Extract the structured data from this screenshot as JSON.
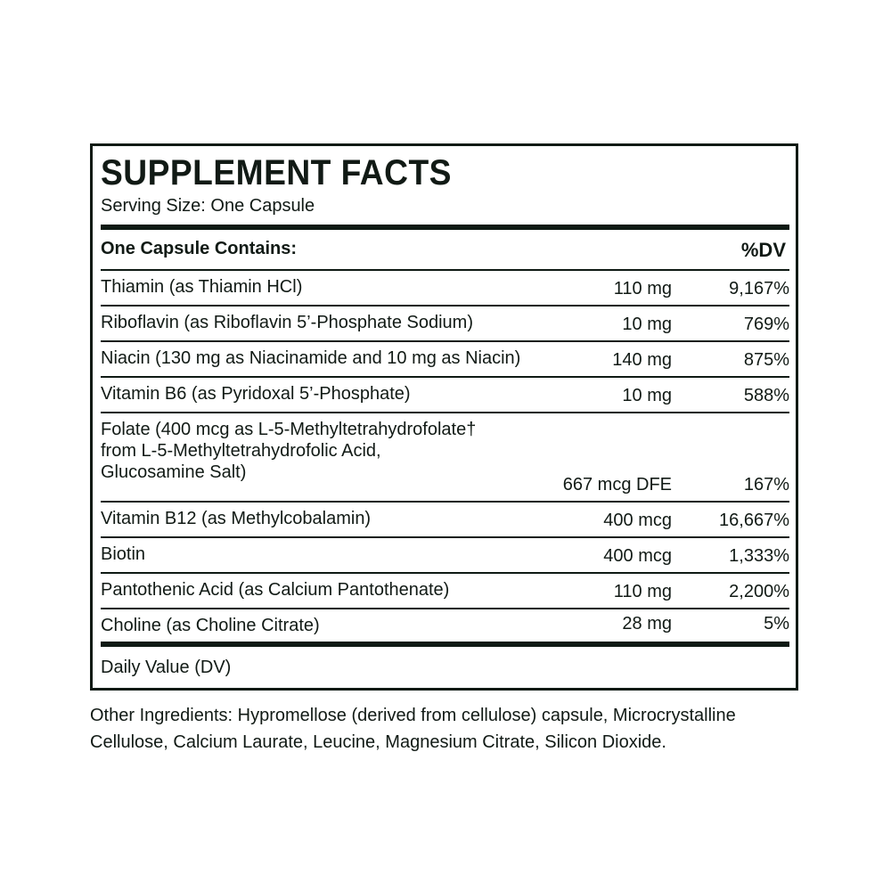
{
  "title": "SUPPLEMENT FACTS",
  "serving_size": "Serving Size: One Capsule",
  "header": {
    "contains": "One Capsule Contains:",
    "dv": "%DV"
  },
  "rows": [
    {
      "name": "Thiamin (as Thiamin HCl)",
      "amount": "110 mg",
      "dv": "9,167%"
    },
    {
      "name": "Riboflavin (as Riboflavin 5’-Phosphate Sodium)",
      "amount": "10 mg",
      "dv": "769%"
    },
    {
      "name": "Niacin (130 mg as Niacinamide and 10 mg as Niacin)",
      "amount": "140 mg",
      "dv": "875%"
    },
    {
      "name": "Vitamin B6 (as Pyridoxal 5’-Phosphate)",
      "amount": "10 mg",
      "dv": "588%"
    },
    {
      "name": "Folate (400 mcg as L-5-Methyltetrahydrofolate†\n  from L-5-Methyltetrahydrofolic Acid,\n  Glucosamine Salt)",
      "amount": "667 mcg DFE",
      "dv": "167%"
    },
    {
      "name": "Vitamin B12 (as Methylcobalamin)",
      "amount": "400 mcg",
      "dv": "16,667%"
    },
    {
      "name": "Biotin",
      "amount": "400 mcg",
      "dv": "1,333%"
    },
    {
      "name": "Pantothenic Acid (as Calcium Pantothenate)",
      "amount": "110 mg",
      "dv": "2,200%"
    },
    {
      "name": "Choline (as Choline Citrate)",
      "amount": "28 mg",
      "dv": "5%"
    }
  ],
  "footnote": "Daily Value (DV)",
  "other_ingredients": "Other Ingredients: Hypromellose (derived from cellulose) capsule, Microcrystalline Cellulose, Calcium Laurate, Leucine, Magnesium Citrate, Silicon Dioxide."
}
